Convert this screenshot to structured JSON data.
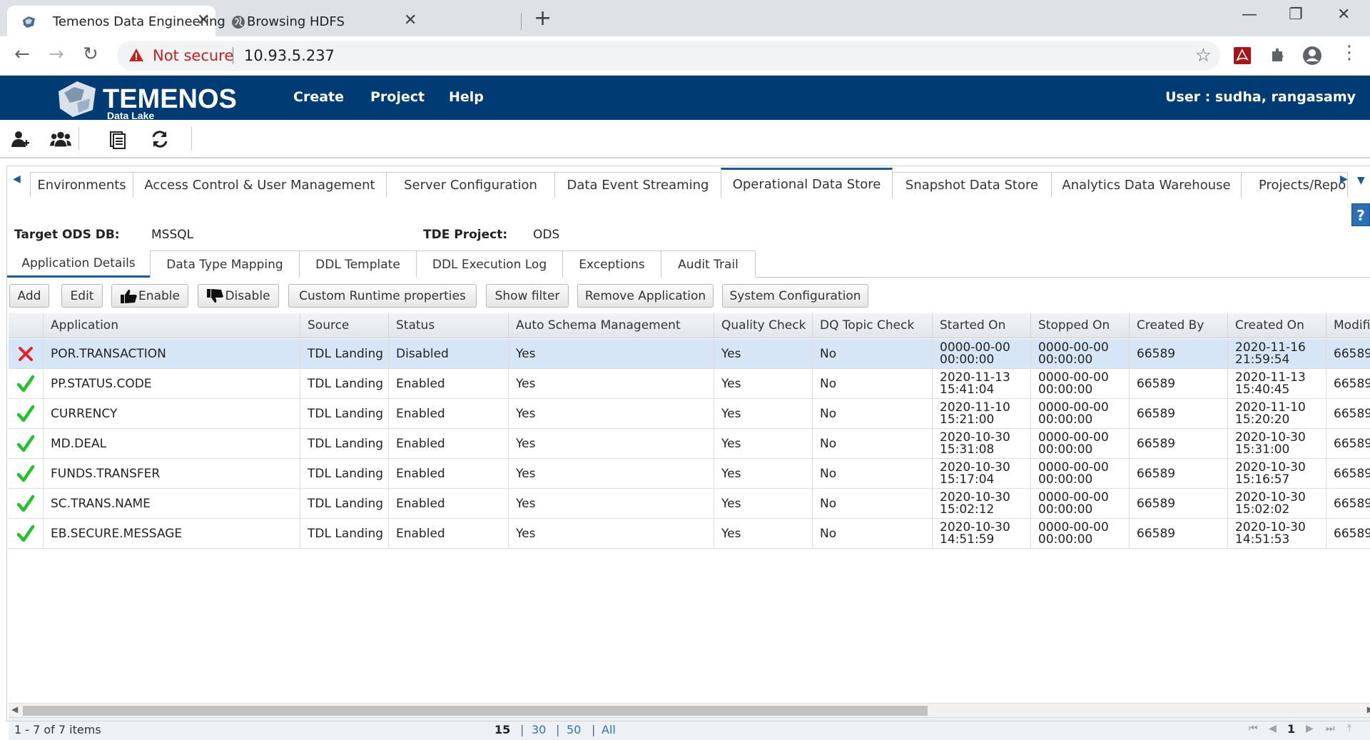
{
  "browser": {
    "tabs": [
      {
        "title": "Temenos Data Engineering",
        "active": true,
        "icon": "temenos-globe-icon"
      },
      {
        "title": "Browsing HDFS",
        "active": false,
        "icon": "globe-icon"
      }
    ],
    "address": {
      "security_label": "Not secure",
      "url": "10.93.5.237"
    }
  },
  "app": {
    "logo": {
      "brand": "TEMENOS",
      "sub": "Data Lake"
    },
    "menu": [
      "Create",
      "Project",
      "Help"
    ],
    "user_label": "User : sudha, rangasamy",
    "toolbar_icons": [
      "add-user-icon",
      "users-group-icon",
      "documents-icon",
      "refresh-icon"
    ]
  },
  "main_tabs": [
    "Environments",
    "Access Control & User Management",
    "Server Configuration",
    "Data Event Streaming",
    "Operational Data Store",
    "Snapshot Data Store",
    "Analytics Data Warehouse",
    "Projects/Repo"
  ],
  "active_main_tab": "Operational Data Store",
  "info": {
    "target_label": "Target ODS DB:",
    "target_value": "MSSQL",
    "project_label": "TDE Project:",
    "project_value": "ODS"
  },
  "sub_tabs": [
    "Application Details",
    "Data Type Mapping",
    "DDL Template",
    "DDL Execution Log",
    "Exceptions",
    "Audit Trail"
  ],
  "active_sub_tab": "Application Details",
  "buttons": [
    "Add",
    "Edit",
    "Enable",
    "Disable",
    "Custom Runtime properties",
    "Show filter",
    "Remove Application",
    "System Configuration"
  ],
  "grid": {
    "columns": [
      "Application",
      "Source",
      "Status",
      "Auto Schema Management",
      "Quality Check",
      "DQ Topic Check",
      "Started On",
      "Stopped On",
      "Created By",
      "Created On",
      "Modified"
    ],
    "rows": [
      {
        "icon": "cross-icon",
        "application": "POR.TRANSACTION",
        "source": "TDL Landing",
        "status": "Disabled",
        "auto_schema": "Yes",
        "quality": "Yes",
        "dq_topic": "No",
        "started_date": "0000-00-00",
        "started_time": "00:00:00",
        "stopped_date": "0000-00-00",
        "stopped_time": "00:00:00",
        "created_by": "66589",
        "created_date": "2020-11-16",
        "created_time": "21:59:54",
        "modified": "66589"
      },
      {
        "icon": "check-icon",
        "application": "PP.STATUS.CODE",
        "source": "TDL Landing",
        "status": "Enabled",
        "auto_schema": "Yes",
        "quality": "Yes",
        "dq_topic": "No",
        "started_date": "2020-11-13",
        "started_time": "15:41:04",
        "stopped_date": "0000-00-00",
        "stopped_time": "00:00:00",
        "created_by": "66589",
        "created_date": "2020-11-13",
        "created_time": "15:40:45",
        "modified": "66589"
      },
      {
        "icon": "check-icon",
        "application": "CURRENCY",
        "source": "TDL Landing",
        "status": "Enabled",
        "auto_schema": "Yes",
        "quality": "Yes",
        "dq_topic": "No",
        "started_date": "2020-11-10",
        "started_time": "15:21:00",
        "stopped_date": "0000-00-00",
        "stopped_time": "00:00:00",
        "created_by": "66589",
        "created_date": "2020-11-10",
        "created_time": "15:20:20",
        "modified": "66589"
      },
      {
        "icon": "check-icon",
        "application": "MD.DEAL",
        "source": "TDL Landing",
        "status": "Enabled",
        "auto_schema": "Yes",
        "quality": "Yes",
        "dq_topic": "No",
        "started_date": "2020-10-30",
        "started_time": "15:31:08",
        "stopped_date": "0000-00-00",
        "stopped_time": "00:00:00",
        "created_by": "66589",
        "created_date": "2020-10-30",
        "created_time": "15:31:00",
        "modified": "66589"
      },
      {
        "icon": "check-icon",
        "application": "FUNDS.TRANSFER",
        "source": "TDL Landing",
        "status": "Enabled",
        "auto_schema": "Yes",
        "quality": "Yes",
        "dq_topic": "No",
        "started_date": "2020-10-30",
        "started_time": "15:17:04",
        "stopped_date": "0000-00-00",
        "stopped_time": "00:00:00",
        "created_by": "66589",
        "created_date": "2020-10-30",
        "created_time": "15:16:57",
        "modified": "66589"
      },
      {
        "icon": "check-icon",
        "application": "SC.TRANS.NAME",
        "source": "TDL Landing",
        "status": "Enabled",
        "auto_schema": "Yes",
        "quality": "Yes",
        "dq_topic": "No",
        "started_date": "2020-10-30",
        "started_time": "15:02:12",
        "stopped_date": "0000-00-00",
        "stopped_time": "00:00:00",
        "created_by": "66589",
        "created_date": "2020-10-30",
        "created_time": "15:02:02",
        "modified": "66589"
      },
      {
        "icon": "check-icon",
        "application": "EB.SECURE.MESSAGE",
        "source": "TDL Landing",
        "status": "Enabled",
        "auto_schema": "Yes",
        "quality": "Yes",
        "dq_topic": "No",
        "started_date": "2020-10-30",
        "started_time": "14:51:59",
        "stopped_date": "0000-00-00",
        "stopped_time": "00:00:00",
        "created_by": "66589",
        "created_date": "2020-10-30",
        "created_time": "14:51:53",
        "modified": "66589"
      }
    ]
  },
  "pager": {
    "count_label": "1 - 7 of 7 items",
    "page_sizes": [
      "15",
      "30",
      "50",
      "All"
    ],
    "current_page_size": "15",
    "current_page": "1"
  },
  "colors": {
    "header_bg": "#003b73",
    "accent": "#1d5a96",
    "selected_row": "#d7e6f7",
    "check": "#22c22a",
    "cross": "#e0242a"
  }
}
